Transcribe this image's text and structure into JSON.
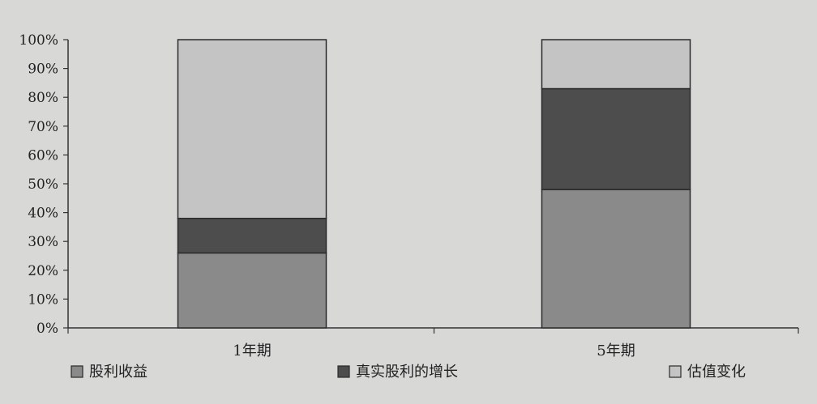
{
  "colors": {
    "background": "#d8d8d6",
    "axis": "#333333",
    "series": [
      "#8a8a8a",
      "#4d4d4d",
      "#c4c4c4"
    ]
  },
  "chart_data": {
    "type": "bar",
    "stacked": true,
    "percent_stacked": true,
    "title": "",
    "xlabel": "",
    "ylabel": "",
    "categories": [
      "1年期",
      "5年期"
    ],
    "series": [
      {
        "name": "股利收益",
        "values": [
          26,
          48
        ]
      },
      {
        "name": "真实股利的增长",
        "values": [
          12,
          35
        ]
      },
      {
        "name": "估值变化",
        "values": [
          62,
          17
        ]
      }
    ],
    "ylim": [
      0,
      100
    ],
    "yticks": [
      "0%",
      "10%",
      "20%",
      "30%",
      "40%",
      "50%",
      "60%",
      "70%",
      "80%",
      "90%",
      "100%"
    ],
    "grid": false,
    "legend_position": "bottom"
  }
}
